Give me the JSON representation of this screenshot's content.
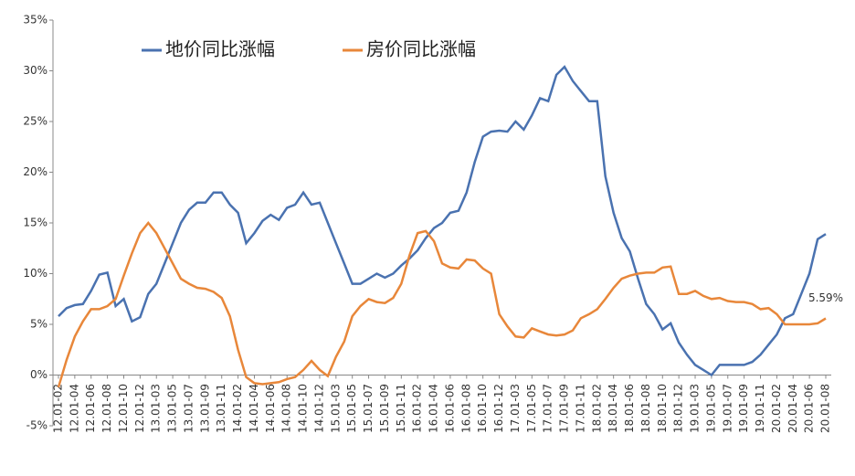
{
  "chart_data": {
    "type": "line",
    "categories": [
      "12.01-02",
      null,
      "12.01-04",
      null,
      "12.01-06",
      null,
      "12.01-08",
      null,
      "12.01-10",
      null,
      "12.01-12",
      null,
      "13.01-03",
      null,
      "13.01-05",
      null,
      "13.01-07",
      null,
      "13.01-09",
      null,
      "13.01-11",
      null,
      "14.01-02",
      null,
      "14.01-04",
      null,
      "14.01-06",
      null,
      "14.01-08",
      null,
      "14.01-10",
      null,
      "14.01-12",
      null,
      "15.01-03",
      null,
      "15.01-05",
      null,
      "15.01-07",
      null,
      "15.01-09",
      null,
      "15.01-11",
      null,
      "16.01-02",
      null,
      "16.01-04",
      null,
      "16.01-06",
      null,
      "16.01-08",
      null,
      "16.01-10",
      null,
      "16.01-12",
      null,
      "17.01-03",
      null,
      "17.01-05",
      null,
      "17.01-07",
      null,
      "17.01-09",
      null,
      "17.01-11",
      null,
      "18.01-02",
      null,
      "18.01-04",
      null,
      "18.01-06",
      null,
      "18.01-08",
      null,
      "18.01-10",
      null,
      "18.01-12",
      null,
      "19.01-03",
      null,
      "19.01-05",
      null,
      "19.01-07",
      null,
      "19.01-09",
      null,
      "19.01-11",
      null,
      "20.01-02",
      null,
      "20.01-04",
      null,
      "20.01-06",
      null,
      "20.01-08"
    ],
    "series": [
      {
        "name": "地价同比涨幅",
        "color": "#4a72b0",
        "values": [
          5.8,
          6.6,
          6.9,
          7.0,
          8.3,
          9.9,
          10.1,
          6.8,
          7.5,
          5.3,
          5.7,
          8.0,
          9.0,
          11.0,
          13.0,
          15.0,
          16.3,
          17.0,
          17.0,
          18.0,
          18.0,
          16.8,
          16.0,
          13.0,
          14.0,
          15.2,
          15.8,
          15.3,
          16.5,
          16.8,
          18.0,
          16.8,
          17.0,
          15.0,
          13.0,
          11.0,
          9.0,
          9.0,
          9.5,
          10.0,
          9.6,
          10.0,
          10.8,
          11.5,
          12.3,
          13.5,
          14.5,
          15.0,
          16.0,
          16.2,
          18.0,
          21.0,
          23.5,
          24.0,
          24.1,
          24.0,
          25.0,
          24.2,
          25.6,
          27.3,
          27.0,
          29.6,
          30.4,
          29.0,
          28.0,
          27.0,
          27.0,
          19.6,
          16.0,
          13.5,
          12.2,
          9.5,
          7.0,
          6.0,
          4.5,
          5.1,
          3.2,
          2.0,
          1.0,
          0.5,
          0.0,
          1.0,
          1.0,
          1.0,
          1.0,
          1.3,
          2.0,
          3.0,
          4.0,
          5.6,
          6.0,
          8.0,
          10.0,
          13.4,
          13.9
        ],
        "value_labels": [
          null,
          null,
          null,
          null,
          null,
          null,
          null,
          null,
          null,
          null,
          null,
          null,
          null,
          null,
          null,
          null,
          null,
          null,
          null,
          null,
          null,
          null,
          null,
          null,
          null,
          null,
          null,
          null,
          null,
          null,
          null,
          null,
          null,
          null,
          null,
          null,
          null,
          null,
          null,
          null,
          null,
          null,
          null,
          null,
          null,
          null,
          null,
          null,
          null,
          null,
          null,
          null,
          null,
          null,
          null,
          null,
          null,
          null,
          null,
          null,
          null,
          null,
          null,
          null,
          null,
          null,
          null,
          null,
          null,
          null,
          null,
          null,
          null,
          null,
          null,
          null,
          null,
          null,
          null,
          null,
          null,
          null,
          null,
          null,
          null,
          null,
          null,
          null,
          null,
          null,
          null,
          null,
          null,
          null,
          null
        ]
      },
      {
        "name": "房价同比涨幅",
        "color": "#e8873a",
        "values": [
          -1.2,
          1.5,
          3.8,
          5.3,
          6.5,
          6.5,
          6.8,
          7.5,
          9.8,
          12.0,
          14.0,
          15.0,
          14.0,
          12.5,
          11.0,
          9.5,
          9.0,
          8.6,
          8.5,
          8.2,
          7.6,
          5.8,
          2.5,
          -0.2,
          -0.8,
          -0.9,
          -0.8,
          -0.7,
          -0.4,
          -0.2,
          0.5,
          1.4,
          0.5,
          -0.1,
          1.8,
          3.3,
          5.8,
          6.8,
          7.5,
          7.2,
          7.1,
          7.6,
          9.0,
          11.8,
          14.0,
          14.2,
          13.2,
          11.0,
          10.6,
          10.5,
          11.4,
          11.3,
          10.5,
          10.0,
          6.0,
          4.8,
          3.8,
          3.7,
          4.6,
          4.3,
          4.0,
          3.9,
          4.0,
          4.4,
          5.6,
          6.0,
          6.5,
          7.5,
          8.6,
          9.5,
          9.8,
          10.0,
          10.1,
          10.1,
          10.6,
          10.7,
          8.0,
          8.0,
          8.3,
          7.8,
          7.5,
          7.6,
          7.3,
          7.2,
          7.2,
          7.0,
          6.5,
          6.6,
          6.0,
          5.0,
          5.0,
          5.0,
          5.0,
          5.1,
          5.59
        ],
        "value_labels": [
          null,
          null,
          null,
          null,
          null,
          null,
          null,
          null,
          null,
          null,
          null,
          null,
          null,
          null,
          null,
          null,
          null,
          null,
          null,
          null,
          null,
          null,
          null,
          null,
          null,
          null,
          null,
          null,
          null,
          null,
          null,
          null,
          null,
          null,
          null,
          null,
          null,
          null,
          null,
          null,
          null,
          null,
          null,
          null,
          null,
          null,
          null,
          null,
          null,
          null,
          null,
          null,
          null,
          null,
          null,
          null,
          null,
          null,
          null,
          null,
          null,
          null,
          null,
          null,
          null,
          null,
          null,
          null,
          null,
          null,
          null,
          null,
          null,
          null,
          null,
          null,
          null,
          null,
          null,
          null,
          null,
          null,
          null,
          null,
          null,
          null,
          null,
          null,
          null,
          null,
          null,
          null,
          null,
          null,
          "5.59%"
        ]
      }
    ],
    "ylim": [
      -5,
      35
    ],
    "yticks": [
      {
        "value": -5,
        "label": "-5%"
      },
      {
        "value": 0,
        "label": "0%"
      },
      {
        "value": 5,
        "label": "5%"
      },
      {
        "value": 10,
        "label": "10%"
      },
      {
        "value": 15,
        "label": "15%"
      },
      {
        "value": 20,
        "label": "20%"
      },
      {
        "value": 25,
        "label": "25%"
      },
      {
        "value": 30,
        "label": "30%"
      },
      {
        "value": 35,
        "label": "35%"
      }
    ],
    "grid": false
  }
}
